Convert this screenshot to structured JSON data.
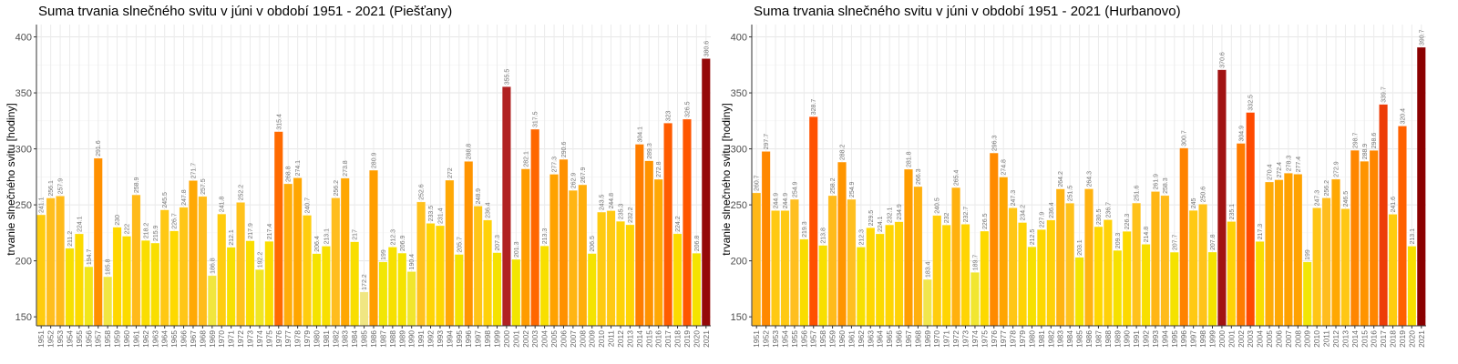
{
  "chart_data": [
    {
      "type": "bar",
      "title": "Suma trvania slnečného svitu v júni v období 1951 - 2021 (Piešťany)",
      "ylabel": "trvanie slnečného svitu [hodiny]",
      "xlabel": "",
      "ylim": [
        142,
        411
      ],
      "yticks": [
        150,
        200,
        250,
        300,
        350,
        400
      ],
      "grid": true,
      "categories": [
        "1951",
        "1952",
        "1953",
        "1954",
        "1955",
        "1956",
        "1957",
        "1958",
        "1959",
        "1960",
        "1961",
        "1962",
        "1963",
        "1964",
        "1965",
        "1966",
        "1967",
        "1968",
        "1969",
        "1970",
        "1971",
        "1972",
        "1973",
        "1974",
        "1975",
        "1976",
        "1977",
        "1978",
        "1979",
        "1980",
        "1981",
        "1982",
        "1983",
        "1984",
        "1985",
        "1986",
        "1987",
        "1988",
        "1989",
        "1990",
        "1991",
        "1992",
        "1993",
        "1994",
        "1995",
        "1996",
        "1997",
        "1998",
        "1999",
        "2000",
        "2001",
        "2002",
        "2003",
        "2004",
        "2005",
        "2006",
        "2007",
        "2008",
        "2009",
        "2010",
        "2011",
        "2012",
        "2013",
        "2014",
        "2015",
        "2016",
        "2017",
        "2018",
        "2019",
        "2020",
        "2021"
      ],
      "values": [
        241.1,
        256.1,
        257.9,
        211.2,
        224.1,
        194.7,
        291.6,
        185.8,
        230,
        222,
        258.9,
        218.2,
        215.9,
        245.5,
        226.7,
        247.8,
        271.7,
        257.5,
        186.8,
        241.8,
        212.1,
        252.2,
        217.9,
        192.2,
        217.4,
        315.4,
        268.8,
        274.1,
        240.7,
        206.4,
        213.1,
        256.2,
        273.8,
        217,
        172.2,
        280.9,
        199,
        212.3,
        206.9,
        190.4,
        252.6,
        233.5,
        231.4,
        272,
        205.7,
        288.8,
        248.9,
        236.4,
        207.3,
        355.5,
        201.3,
        282.1,
        317.5,
        213.3,
        277.3,
        290.6,
        262.9,
        267.9,
        206.5,
        243.5,
        244.8,
        235.3,
        232.2,
        304.1,
        289.3,
        272.8,
        323,
        224.2,
        326.5,
        206.8,
        380.6
      ]
    },
    {
      "type": "bar",
      "title": "Suma trvania slnečného svitu v júni v období 1951 - 2021 (Hurbanovo)",
      "ylabel": "trvanie slnečného svitu [hodiny]",
      "xlabel": "",
      "ylim": [
        142,
        411
      ],
      "yticks": [
        150,
        200,
        250,
        300,
        350,
        400
      ],
      "grid": true,
      "categories": [
        "1951",
        "1952",
        "1953",
        "1954",
        "1955",
        "1956",
        "1957",
        "1958",
        "1959",
        "1960",
        "1961",
        "1962",
        "1963",
        "1964",
        "1965",
        "1966",
        "1967",
        "1968",
        "1969",
        "1970",
        "1971",
        "1972",
        "1973",
        "1974",
        "1975",
        "1976",
        "1977",
        "1978",
        "1979",
        "1980",
        "1981",
        "1982",
        "1983",
        "1984",
        "1985",
        "1986",
        "1987",
        "1988",
        "1989",
        "1990",
        "1991",
        "1992",
        "1993",
        "1994",
        "1995",
        "1996",
        "1997",
        "1998",
        "1999",
        "2000",
        "2001",
        "2002",
        "2003",
        "2004",
        "2005",
        "2006",
        "2007",
        "2008",
        "2009",
        "2010",
        "2011",
        "2012",
        "2013",
        "2014",
        "2015",
        "2016",
        "2017",
        "2018",
        "2019",
        "2020",
        "2021"
      ],
      "values": [
        260.7,
        297.7,
        244.9,
        244.9,
        254.9,
        219.3,
        328.7,
        213.8,
        258.2,
        288.2,
        254.9,
        212.3,
        229.5,
        224.1,
        232.1,
        234.9,
        281.8,
        266.3,
        183.4,
        240.5,
        232,
        265.4,
        232.7,
        189.7,
        226.5,
        296.3,
        274.8,
        247.3,
        234.2,
        212.5,
        227.9,
        236.4,
        264.2,
        251.5,
        203.1,
        264.3,
        230.5,
        236.7,
        209.3,
        226.3,
        251.6,
        214.8,
        261.9,
        258.3,
        207.7,
        300.7,
        245,
        250.6,
        207.8,
        370.6,
        235.1,
        304.9,
        332.5,
        217.3,
        270.4,
        272.4,
        278.3,
        277.4,
        199,
        247.3,
        256.2,
        272.9,
        246.5,
        298.7,
        288.9,
        298.6,
        339.7,
        241.6,
        320.4,
        213.1,
        390.7
      ]
    }
  ],
  "color_scale": [
    {
      "value": 170,
      "color": "#f0e68c"
    },
    {
      "value": 200,
      "color": "#f2e600"
    },
    {
      "value": 230,
      "color": "#ffd700"
    },
    {
      "value": 255,
      "color": "#ffbf20"
    },
    {
      "value": 275,
      "color": "#ffa500"
    },
    {
      "value": 295,
      "color": "#ff8c00"
    },
    {
      "value": 318,
      "color": "#ff6600"
    },
    {
      "value": 335,
      "color": "#ff4500"
    },
    {
      "value": 355,
      "color": "#b22222"
    },
    {
      "value": 390,
      "color": "#8b0000"
    }
  ]
}
